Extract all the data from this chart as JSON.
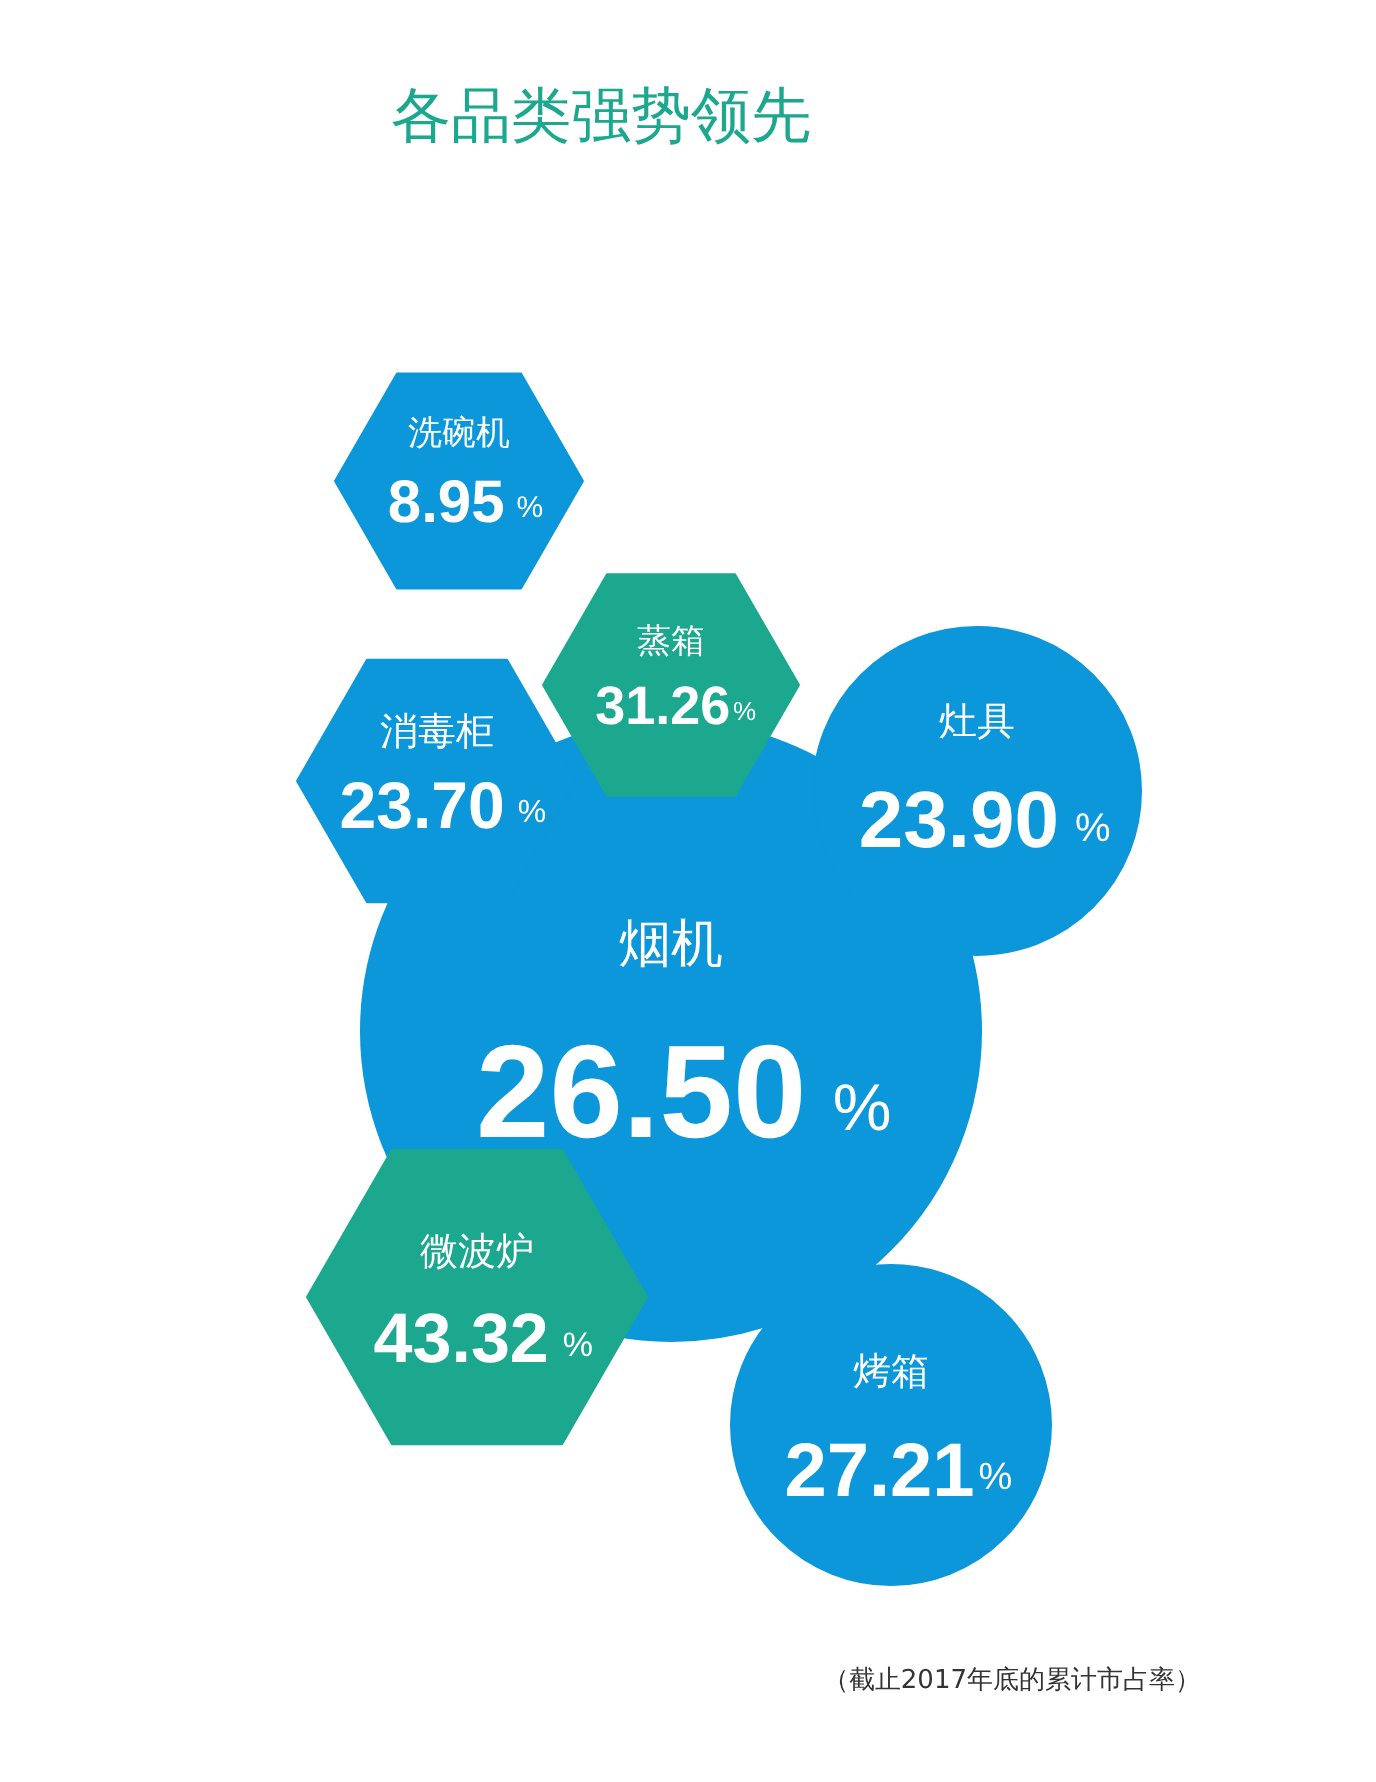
{
  "chart_data": {
    "type": "other",
    "title": "各品类强势领先",
    "categories": [
      "洗碗机",
      "蒸箱",
      "消毒柜",
      "灶具",
      "烟机",
      "微波炉",
      "烤箱"
    ],
    "values": [
      8.95,
      31.26,
      23.7,
      23.9,
      26.5,
      43.32,
      27.21
    ],
    "value_labels": [
      "8.95 %",
      "31.26%",
      "23.70 %",
      "23.90 %",
      "26.50 %",
      "43.32 %",
      "27.21%"
    ],
    "colors": [
      "#0b97d9",
      "#1ba88e",
      "#0b97d9",
      "#0b97d9",
      "#0b97d9",
      "#1ba88e",
      "#0b97d9"
    ],
    "annotations": [
      "（截止2017年底的累计市占率）"
    ]
  }
}
